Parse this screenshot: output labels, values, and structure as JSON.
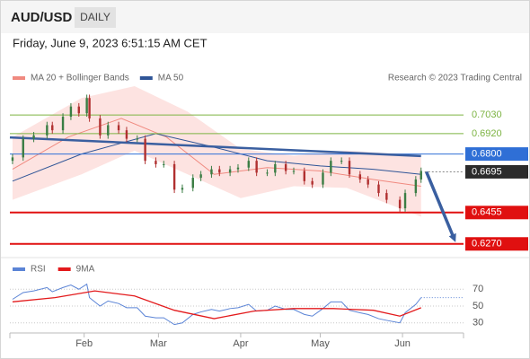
{
  "header": {
    "symbol": "AUD/USD",
    "timeframe": "DAILY",
    "timestamp": "Friday, June 9, 2023 6:51:15 AM CET"
  },
  "chart_data": [
    {
      "type": "candlestick",
      "credit": "Research © 2023 Trading Central",
      "x": [
        4,
        8,
        12,
        17,
        19,
        23,
        26,
        29,
        32,
        33,
        37,
        40,
        44,
        47,
        51,
        54,
        58,
        61,
        65,
        68,
        72,
        75,
        79,
        82,
        86,
        89,
        93,
        96,
        100,
        103,
        107,
        110,
        114,
        117,
        121,
        124,
        128,
        131,
        135,
        138,
        142,
        145,
        150,
        152,
        156,
        158
      ],
      "open": [
        0.676,
        0.678,
        0.689,
        0.691,
        0.697,
        0.694,
        0.702,
        0.708,
        0.704,
        0.713,
        0.701,
        0.691,
        0.697,
        0.694,
        0.689,
        0.689,
        0.676,
        0.674,
        0.674,
        0.659,
        0.66,
        0.666,
        0.668,
        0.671,
        0.669,
        0.671,
        0.672,
        0.676,
        0.669,
        0.669,
        0.674,
        0.67,
        0.67,
        0.664,
        0.662,
        0.669,
        0.676,
        0.676,
        0.668,
        0.665,
        0.662,
        0.657,
        0.653,
        0.648,
        0.657,
        0.665
      ],
      "high": [
        0.68,
        0.691,
        0.693,
        0.699,
        0.699,
        0.704,
        0.71,
        0.71,
        0.715,
        0.715,
        0.703,
        0.699,
        0.699,
        0.696,
        0.691,
        0.691,
        0.678,
        0.676,
        0.676,
        0.662,
        0.668,
        0.67,
        0.673,
        0.673,
        0.673,
        0.674,
        0.678,
        0.678,
        0.671,
        0.676,
        0.676,
        0.672,
        0.672,
        0.666,
        0.671,
        0.678,
        0.678,
        0.678,
        0.67,
        0.667,
        0.664,
        0.659,
        0.655,
        0.659,
        0.667,
        0.672
      ],
      "low": [
        0.674,
        0.676,
        0.687,
        0.689,
        0.692,
        0.692,
        0.7,
        0.702,
        0.702,
        0.699,
        0.689,
        0.689,
        0.692,
        0.687,
        0.687,
        0.674,
        0.672,
        0.672,
        0.657,
        0.657,
        0.658,
        0.664,
        0.666,
        0.667,
        0.667,
        0.669,
        0.67,
        0.667,
        0.667,
        0.667,
        0.668,
        0.668,
        0.662,
        0.66,
        0.66,
        0.667,
        0.674,
        0.666,
        0.663,
        0.66,
        0.655,
        0.651,
        0.646,
        0.646,
        0.655,
        0.663
      ],
      "close": [
        0.678,
        0.689,
        0.691,
        0.697,
        0.694,
        0.702,
        0.708,
        0.704,
        0.713,
        0.701,
        0.691,
        0.697,
        0.694,
        0.689,
        0.689,
        0.676,
        0.674,
        0.674,
        0.659,
        0.66,
        0.666,
        0.668,
        0.671,
        0.669,
        0.671,
        0.672,
        0.676,
        0.669,
        0.669,
        0.674,
        0.67,
        0.67,
        0.664,
        0.662,
        0.669,
        0.676,
        0.676,
        0.668,
        0.665,
        0.662,
        0.657,
        0.653,
        0.648,
        0.657,
        0.665,
        0.67
      ],
      "up_color": "#3a7d44",
      "down_color": "#b03030",
      "series": [
        {
          "name": "MA 20 + Bollinger Bands",
          "color": "#f08a80",
          "band_color": "#fde3e1",
          "x": [
            4,
            25,
            45,
            62,
            80,
            100,
            120,
            140,
            158
          ],
          "values": [
            0.671,
            0.69,
            0.701,
            0.69,
            0.668,
            0.672,
            0.67,
            0.665,
            0.661
          ],
          "band_x": [
            4,
            30,
            50,
            70,
            90,
            110,
            130,
            150,
            158
          ],
          "upper": [
            0.69,
            0.713,
            0.72,
            0.705,
            0.683,
            0.679,
            0.682,
            0.68,
            0.678
          ],
          "lower": [
            0.653,
            0.668,
            0.682,
            0.668,
            0.654,
            0.661,
            0.66,
            0.648,
            0.643
          ]
        },
        {
          "name": "MA 50",
          "color": "#2f5597",
          "x": [
            4,
            30,
            58,
            80,
            100,
            120,
            140,
            158
          ],
          "values": [
            0.664,
            0.68,
            0.692,
            0.684,
            0.676,
            0.673,
            0.671,
            0.668
          ]
        }
      ],
      "levels": [
        {
          "value": 0.703,
          "label": "0.7030",
          "color": "#7cb342",
          "boxed": false
        },
        {
          "value": 0.692,
          "label": "0.6920",
          "color": "#7cb342",
          "boxed": false
        },
        {
          "value": 0.68,
          "label": "0.6800",
          "color": "#2f6fd6",
          "boxed": true
        },
        {
          "value": 0.6695,
          "label": "0.6695",
          "color": "#2b2b2b",
          "boxed": true,
          "dotted": true
        },
        {
          "value": 0.6455,
          "label": "0.6455",
          "color": "#e01010",
          "boxed": true
        },
        {
          "value": 0.627,
          "label": "0.6270",
          "color": "#e01010",
          "boxed": true
        }
      ],
      "trendline": {
        "x": [
          3,
          158
        ],
        "values": [
          0.6898,
          0.6788
        ],
        "color": "#3a5fa0"
      },
      "projection": {
        "x": [
          160,
          171
        ],
        "values": [
          0.6695,
          0.628
        ],
        "color": "#3a5fa0"
      },
      "xlim": [
        3,
        174
      ],
      "ylim": [
        0.62,
        0.72
      ]
    },
    {
      "type": "line",
      "x": [
        4,
        8,
        12,
        17,
        19,
        23,
        26,
        29,
        32,
        33,
        37,
        40,
        44,
        47,
        51,
        54,
        58,
        61,
        65,
        68,
        72,
        75,
        79,
        82,
        86,
        89,
        93,
        96,
        100,
        103,
        107,
        110,
        114,
        117,
        121,
        124,
        128,
        131,
        135,
        138,
        142,
        145,
        150,
        152,
        156,
        158
      ],
      "series": [
        {
          "name": "RSI",
          "color": "#5b84d6",
          "values": [
            58,
            66,
            68,
            72,
            67,
            72,
            75,
            70,
            76,
            60,
            50,
            56,
            53,
            48,
            48,
            38,
            36,
            36,
            28,
            30,
            40,
            43,
            46,
            44,
            47,
            48,
            52,
            44,
            45,
            50,
            46,
            46,
            40,
            38,
            47,
            55,
            55,
            45,
            42,
            40,
            35,
            33,
            30,
            42,
            52,
            60
          ]
        },
        {
          "name": "9MA",
          "color": "#e31a1c",
          "x": [
            4,
            20,
            35,
            50,
            65,
            80,
            95,
            110,
            125,
            140,
            150,
            158
          ],
          "values": [
            55,
            60,
            68,
            62,
            45,
            35,
            44,
            47,
            47,
            45,
            38,
            48
          ]
        }
      ],
      "xlim": [
        3,
        174
      ],
      "ylim": [
        18,
        82
      ],
      "yticks": [
        30,
        50,
        70
      ],
      "xticks": [
        {
          "value": 31,
          "label": "Feb"
        },
        {
          "value": 59,
          "label": "Mar"
        },
        {
          "value": 90,
          "label": "Apr"
        },
        {
          "value": 120,
          "label": "May"
        },
        {
          "value": 151,
          "label": "Jun"
        }
      ]
    }
  ]
}
